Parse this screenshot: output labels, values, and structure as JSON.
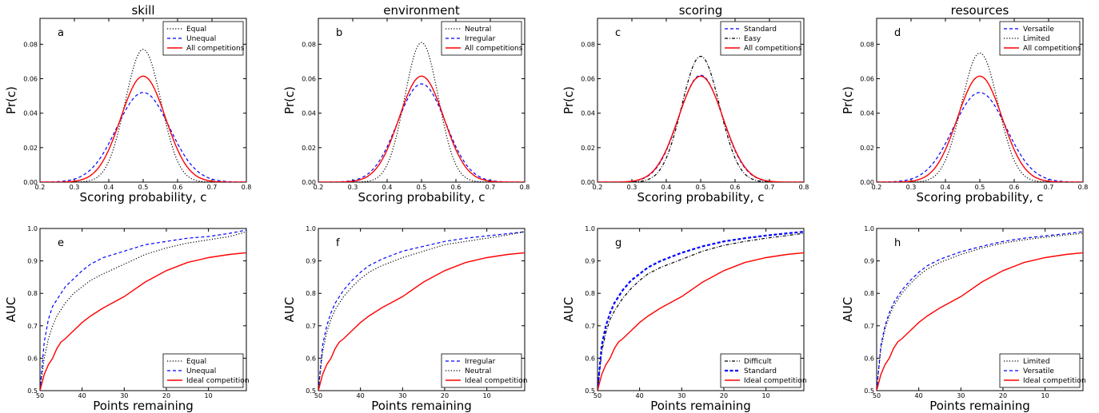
{
  "chart_data": [
    {
      "id": "a",
      "type": "line",
      "title": "skill",
      "panel_label": "a",
      "xlabel": "Scoring probability, c",
      "ylabel": "Pr(c)",
      "xlim": [
        0.2,
        0.8
      ],
      "ylim": [
        0,
        0.095
      ],
      "xticks": [
        "0.2",
        "0.3",
        "0.4",
        "0.5",
        "0.6",
        "0.7",
        "0.8"
      ],
      "yticks": [
        "0.00",
        "0.02",
        "0.04",
        "0.06",
        "0.08"
      ],
      "legend_position": "top-right",
      "series": [
        {
          "name": "Equal",
          "style": "dotted",
          "color": "#000000",
          "kind": "gauss",
          "peak": 0.077,
          "mean": 0.5,
          "sd": 0.052
        },
        {
          "name": "Unequal",
          "style": "dashed",
          "color": "#0000ff",
          "kind": "gauss",
          "peak": 0.052,
          "mean": 0.5,
          "sd": 0.077
        },
        {
          "name": "All competitions",
          "style": "solid",
          "color": "#ff0000",
          "kind": "gauss",
          "peak": 0.0615,
          "mean": 0.5,
          "sd": 0.065
        }
      ]
    },
    {
      "id": "b",
      "type": "line",
      "title": "environment",
      "panel_label": "b",
      "xlabel": "Scoring probability, c",
      "ylabel": "Pr(c)",
      "xlim": [
        0.2,
        0.8
      ],
      "ylim": [
        0,
        0.095
      ],
      "xticks": [
        "0.2",
        "0.3",
        "0.4",
        "0.5",
        "0.6",
        "0.7",
        "0.8"
      ],
      "yticks": [
        "0.00",
        "0.02",
        "0.04",
        "0.06",
        "0.08"
      ],
      "legend_position": "top-right",
      "series": [
        {
          "name": "Neutral",
          "style": "dotted",
          "color": "#000000",
          "kind": "gauss",
          "peak": 0.081,
          "mean": 0.5,
          "sd": 0.049
        },
        {
          "name": "Irregular",
          "style": "dashed",
          "color": "#0000ff",
          "kind": "gauss",
          "peak": 0.057,
          "mean": 0.5,
          "sd": 0.07
        },
        {
          "name": "All competitions",
          "style": "solid",
          "color": "#ff0000",
          "kind": "gauss",
          "peak": 0.0615,
          "mean": 0.5,
          "sd": 0.065
        }
      ]
    },
    {
      "id": "c",
      "type": "line",
      "title": "scoring",
      "panel_label": "c",
      "xlabel": "Scoring probability, c",
      "ylabel": "Pr(c)",
      "xlim": [
        0.2,
        0.8
      ],
      "ylim": [
        0,
        0.095
      ],
      "xticks": [
        "0.2",
        "0.3",
        "0.4",
        "0.5",
        "0.6",
        "0.7",
        "0.8"
      ],
      "yticks": [
        "0.00",
        "0.02",
        "0.04",
        "0.06",
        "0.08"
      ],
      "legend_position": "top-right",
      "series": [
        {
          "name": "Standard",
          "style": "dashed",
          "color": "#0000ff",
          "kind": "gauss",
          "peak": 0.062,
          "mean": 0.5,
          "sd": 0.064
        },
        {
          "name": "Easy",
          "style": "dashdot",
          "color": "#000000",
          "kind": "gauss",
          "peak": 0.073,
          "mean": 0.5,
          "sd": 0.055
        },
        {
          "name": "All competitions",
          "style": "solid",
          "color": "#ff0000",
          "kind": "gauss",
          "peak": 0.0615,
          "mean": 0.5,
          "sd": 0.065
        }
      ]
    },
    {
      "id": "d",
      "type": "line",
      "title": "resources",
      "panel_label": "d",
      "xlabel": "Scoring probability, c",
      "ylabel": "Pr(c)",
      "xlim": [
        0.2,
        0.8
      ],
      "ylim": [
        0,
        0.095
      ],
      "xticks": [
        "0.2",
        "0.3",
        "0.4",
        "0.5",
        "0.6",
        "0.7",
        "0.8"
      ],
      "yticks": [
        "0.00",
        "0.02",
        "0.04",
        "0.06",
        "0.08"
      ],
      "legend_position": "top-right",
      "series": [
        {
          "name": "Versatile",
          "style": "dashed",
          "color": "#0000ff",
          "kind": "gauss",
          "peak": 0.052,
          "mean": 0.5,
          "sd": 0.077
        },
        {
          "name": "Limited",
          "style": "dotted",
          "color": "#000000",
          "kind": "gauss",
          "peak": 0.075,
          "mean": 0.5,
          "sd": 0.053
        },
        {
          "name": "All competitions",
          "style": "solid",
          "color": "#ff0000",
          "kind": "gauss",
          "peak": 0.0615,
          "mean": 0.5,
          "sd": 0.065
        }
      ]
    },
    {
      "id": "e",
      "type": "line",
      "panel_label": "e",
      "xlabel": "Points remaining",
      "ylabel": "AUC",
      "xlim": [
        50,
        1
      ],
      "ylim": [
        0.5,
        1.0
      ],
      "xticks": [
        "50",
        "40",
        "30",
        "20",
        "10"
      ],
      "yticks": [
        "0.5",
        "0.6",
        "0.7",
        "0.8",
        "0.9",
        "1.0"
      ],
      "legend_position": "bottom-right",
      "series": [
        {
          "name": "Equal",
          "style": "dotted",
          "color": "#000000",
          "x": [
            50,
            49,
            48,
            47,
            46,
            45,
            44,
            42,
            40,
            38,
            35,
            30,
            25,
            20,
            15,
            10,
            5,
            1
          ],
          "y": [
            0.5,
            0.6,
            0.66,
            0.7,
            0.73,
            0.75,
            0.77,
            0.8,
            0.82,
            0.84,
            0.86,
            0.89,
            0.92,
            0.94,
            0.955,
            0.965,
            0.975,
            0.99
          ]
        },
        {
          "name": "Unequal",
          "style": "dashed",
          "color": "#0000ff",
          "x": [
            50,
            49,
            48,
            47,
            46,
            45,
            44,
            42,
            40,
            38,
            35,
            30,
            25,
            20,
            15,
            10,
            5,
            1
          ],
          "y": [
            0.5,
            0.65,
            0.72,
            0.76,
            0.78,
            0.8,
            0.82,
            0.845,
            0.87,
            0.89,
            0.91,
            0.93,
            0.95,
            0.96,
            0.97,
            0.975,
            0.985,
            0.995
          ]
        },
        {
          "name": "Ideal competition",
          "style": "solid",
          "color": "#ff0000",
          "x": [
            50,
            49,
            48,
            47,
            46,
            45,
            44,
            42,
            40,
            38,
            35,
            30,
            25,
            20,
            15,
            10,
            5,
            1
          ],
          "y": [
            0.5,
            0.55,
            0.58,
            0.6,
            0.63,
            0.65,
            0.66,
            0.685,
            0.71,
            0.73,
            0.755,
            0.79,
            0.835,
            0.87,
            0.895,
            0.91,
            0.92,
            0.925
          ]
        }
      ]
    },
    {
      "id": "f",
      "type": "line",
      "panel_label": "f",
      "xlabel": "Points remaining",
      "ylabel": "AUC",
      "xlim": [
        50,
        1
      ],
      "ylim": [
        0.5,
        1.0
      ],
      "xticks": [
        "50",
        "40",
        "30",
        "20",
        "10"
      ],
      "yticks": [
        "0.5",
        "0.6",
        "0.7",
        "0.8",
        "0.9",
        "1.0"
      ],
      "legend_position": "bottom-right",
      "series": [
        {
          "name": "Irregular",
          "style": "dashed",
          "color": "#0000ff",
          "x": [
            50,
            49,
            48,
            47,
            46,
            45,
            44,
            42,
            40,
            38,
            35,
            30,
            25,
            20,
            15,
            10,
            5,
            1
          ],
          "y": [
            0.5,
            0.64,
            0.7,
            0.74,
            0.77,
            0.79,
            0.81,
            0.84,
            0.865,
            0.885,
            0.905,
            0.93,
            0.945,
            0.96,
            0.97,
            0.977,
            0.984,
            0.99
          ]
        },
        {
          "name": "Neutral",
          "style": "dotted",
          "color": "#000000",
          "x": [
            50,
            49,
            48,
            47,
            46,
            45,
            44,
            42,
            40,
            38,
            35,
            30,
            25,
            20,
            15,
            10,
            5,
            1
          ],
          "y": [
            0.5,
            0.62,
            0.68,
            0.72,
            0.75,
            0.77,
            0.79,
            0.82,
            0.845,
            0.865,
            0.885,
            0.91,
            0.93,
            0.95,
            0.96,
            0.97,
            0.98,
            0.99
          ]
        },
        {
          "name": "Ideal competition",
          "style": "solid",
          "color": "#ff0000",
          "x": [
            50,
            49,
            48,
            47,
            46,
            45,
            44,
            42,
            40,
            38,
            35,
            30,
            25,
            20,
            15,
            10,
            5,
            1
          ],
          "y": [
            0.5,
            0.55,
            0.58,
            0.6,
            0.63,
            0.65,
            0.66,
            0.685,
            0.71,
            0.73,
            0.755,
            0.79,
            0.835,
            0.87,
            0.895,
            0.91,
            0.92,
            0.925
          ]
        }
      ]
    },
    {
      "id": "g",
      "type": "line",
      "panel_label": "g",
      "xlabel": "Points remaining",
      "ylabel": "AUC",
      "xlim": [
        50,
        1
      ],
      "ylim": [
        0.5,
        1.0
      ],
      "xticks": [
        "50",
        "40",
        "30",
        "20",
        "10"
      ],
      "yticks": [
        "0.5",
        "0.6",
        "0.7",
        "0.8",
        "0.9",
        "1.0"
      ],
      "legend_position": "bottom-right",
      "series": [
        {
          "name": "Difficult",
          "style": "dashdot",
          "color": "#000000",
          "x": [
            50,
            49,
            48,
            47,
            46,
            45,
            44,
            42,
            40,
            38,
            35,
            30,
            25,
            20,
            15,
            10,
            5,
            1
          ],
          "y": [
            0.5,
            0.62,
            0.68,
            0.72,
            0.745,
            0.765,
            0.785,
            0.815,
            0.84,
            0.86,
            0.88,
            0.905,
            0.93,
            0.948,
            0.96,
            0.97,
            0.978,
            0.985
          ]
        },
        {
          "name": "Standard",
          "style": "dashed-bold",
          "color": "#0000ff",
          "x": [
            50,
            49,
            48,
            47,
            46,
            45,
            44,
            42,
            40,
            38,
            35,
            30,
            25,
            20,
            15,
            10,
            5,
            1
          ],
          "y": [
            0.5,
            0.64,
            0.7,
            0.74,
            0.77,
            0.79,
            0.81,
            0.84,
            0.86,
            0.88,
            0.9,
            0.925,
            0.945,
            0.96,
            0.97,
            0.978,
            0.985,
            0.99
          ]
        },
        {
          "name": "Ideal competition",
          "style": "solid",
          "color": "#ff0000",
          "x": [
            50,
            49,
            48,
            47,
            46,
            45,
            44,
            42,
            40,
            38,
            35,
            30,
            25,
            20,
            15,
            10,
            5,
            1
          ],
          "y": [
            0.5,
            0.55,
            0.58,
            0.6,
            0.63,
            0.65,
            0.66,
            0.685,
            0.71,
            0.73,
            0.755,
            0.79,
            0.835,
            0.87,
            0.895,
            0.91,
            0.92,
            0.925
          ]
        }
      ]
    },
    {
      "id": "h",
      "type": "line",
      "panel_label": "h",
      "xlabel": "Points remaining",
      "ylabel": "AUC",
      "xlim": [
        50,
        1
      ],
      "ylim": [
        0.5,
        1.0
      ],
      "xticks": [
        "50",
        "40",
        "30",
        "20",
        "10"
      ],
      "yticks": [
        "0.5",
        "0.6",
        "0.7",
        "0.8",
        "0.9",
        "1.0"
      ],
      "legend_position": "bottom-right",
      "series": [
        {
          "name": "Limited",
          "style": "dotted",
          "color": "#000000",
          "x": [
            50,
            49,
            48,
            47,
            46,
            45,
            44,
            42,
            40,
            38,
            35,
            30,
            25,
            20,
            15,
            10,
            5,
            1
          ],
          "y": [
            0.5,
            0.63,
            0.69,
            0.73,
            0.76,
            0.78,
            0.8,
            0.83,
            0.855,
            0.875,
            0.895,
            0.92,
            0.94,
            0.955,
            0.965,
            0.973,
            0.98,
            0.985
          ]
        },
        {
          "name": "Versatile",
          "style": "dashed",
          "color": "#0000ff",
          "x": [
            50,
            49,
            48,
            47,
            46,
            45,
            44,
            42,
            40,
            38,
            35,
            30,
            25,
            20,
            15,
            10,
            5,
            1
          ],
          "y": [
            0.5,
            0.64,
            0.7,
            0.74,
            0.77,
            0.79,
            0.81,
            0.84,
            0.865,
            0.885,
            0.905,
            0.928,
            0.945,
            0.96,
            0.97,
            0.977,
            0.984,
            0.99
          ]
        },
        {
          "name": "Ideal competition",
          "style": "solid",
          "color": "#ff0000",
          "x": [
            50,
            49,
            48,
            47,
            46,
            45,
            44,
            42,
            40,
            38,
            35,
            30,
            25,
            20,
            15,
            10,
            5,
            1
          ],
          "y": [
            0.5,
            0.55,
            0.58,
            0.6,
            0.63,
            0.65,
            0.66,
            0.685,
            0.71,
            0.73,
            0.755,
            0.79,
            0.835,
            0.87,
            0.895,
            0.91,
            0.92,
            0.925
          ]
        }
      ]
    }
  ]
}
